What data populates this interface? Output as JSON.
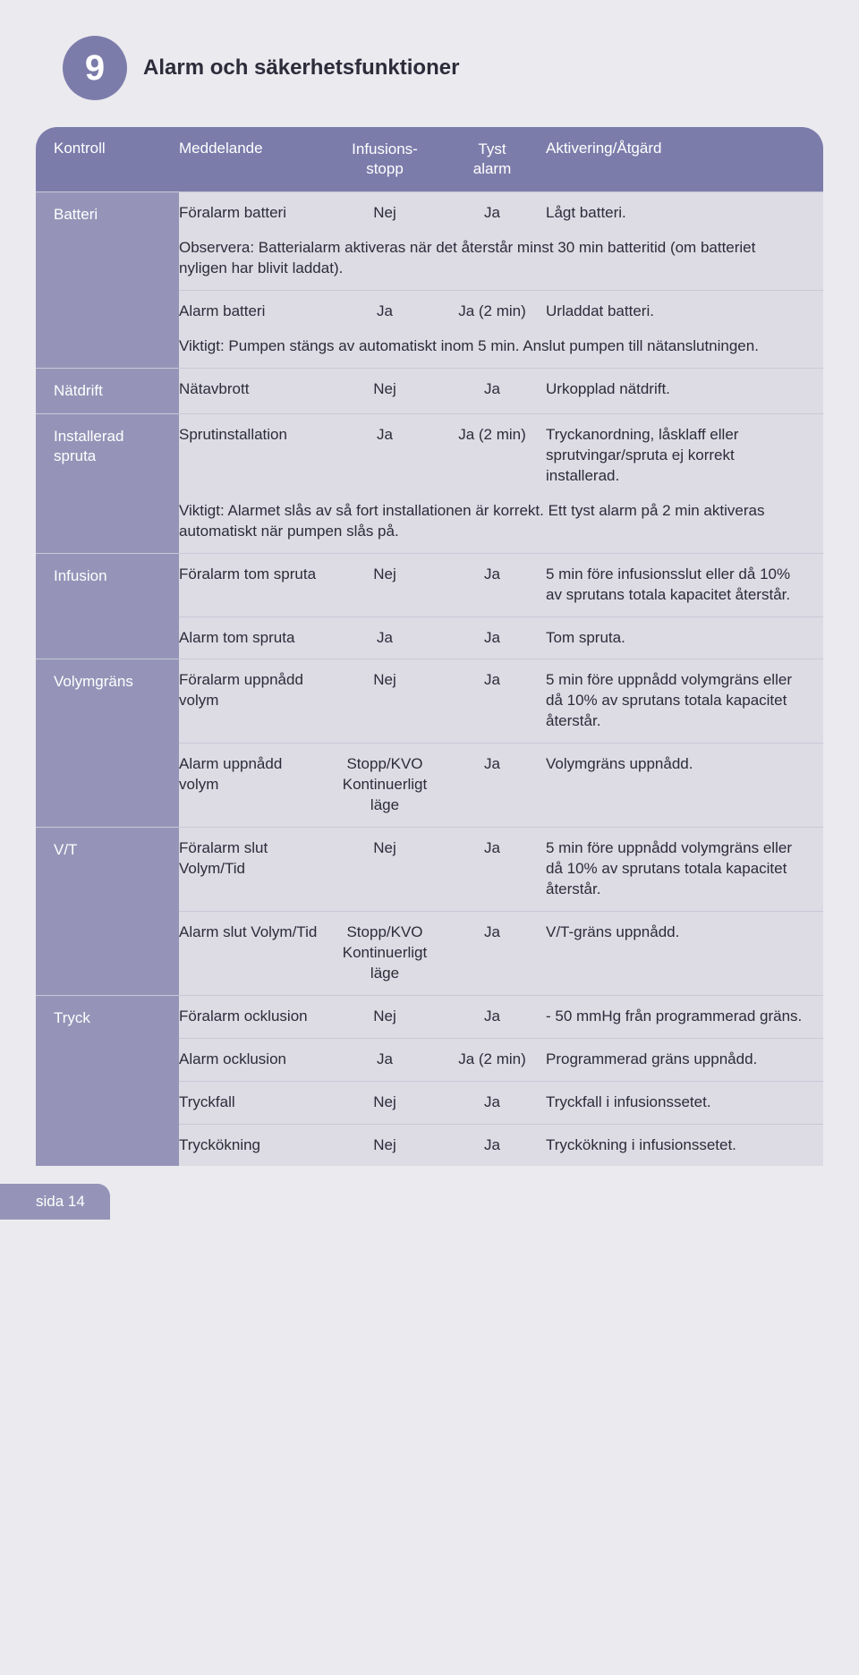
{
  "chapter": {
    "number": "9",
    "title": "Alarm och säkerhetsfunktioner"
  },
  "headers": {
    "kontroll": "Kontroll",
    "meddelande": "Meddelande",
    "stopp1": "Infusions-",
    "stopp2": "stopp",
    "tyst1": "Tyst",
    "tyst2": "alarm",
    "action": "Aktivering/Åtgärd"
  },
  "page_label": "sida 14",
  "sections": {
    "batteri": {
      "label": "Batteri",
      "rows": [
        {
          "medd": "Föralarm batteri",
          "stopp": "Nej",
          "tyst": "Ja",
          "act": "Lågt batteri.",
          "note": "Observera: Batterialarm aktiveras när det återstår minst 30 min batteritid (om batteriet nyligen har blivit laddat)."
        },
        {
          "medd": "Alarm batteri",
          "stopp": "Ja",
          "tyst": "Ja (2 min)",
          "act": "Urladdat batteri.",
          "note": "Viktigt: Pumpen stängs av automatiskt inom 5 min. Anslut pumpen till nätanslutningen."
        }
      ]
    },
    "natdrift": {
      "label": "Nätdrift",
      "rows": [
        {
          "medd": "Nätavbrott",
          "stopp": "Nej",
          "tyst": "Ja",
          "act": "Urkopplad nätdrift."
        }
      ]
    },
    "spruta": {
      "label": "Installerad spruta",
      "rows": [
        {
          "medd": "Sprutinstallation",
          "stopp": "Ja",
          "tyst": "Ja (2 min)",
          "act": "Tryckanordning, låsklaff eller sprutvingar/spruta ej korrekt installerad.",
          "note": "Viktigt: Alarmet slås av så fort installationen är korrekt. Ett tyst alarm på 2 min aktiveras automatiskt när pumpen slås på."
        }
      ]
    },
    "infusion": {
      "label": "Infusion",
      "rows": [
        {
          "medd": "Föralarm tom spruta",
          "stopp": "Nej",
          "tyst": "Ja",
          "act": "5 min före infusionsslut eller då 10% av sprutans totala kapacitet återstår."
        },
        {
          "medd": "Alarm tom spruta",
          "stopp": "Ja",
          "tyst": "Ja",
          "act": "Tom spruta."
        }
      ]
    },
    "volym": {
      "label": "Volymgräns",
      "rows": [
        {
          "medd": "Föralarm uppnådd volym",
          "stopp": "Nej",
          "tyst": "Ja",
          "act": "5 min före uppnådd volymgräns eller då 10% av sprutans totala kapacitet återstår."
        },
        {
          "medd": "Alarm uppnådd volym",
          "stopp": "Stopp/KVO Kontinuerligt läge",
          "tyst": "Ja",
          "act": "Volymgräns uppnådd."
        }
      ]
    },
    "vt": {
      "label": "V/T",
      "rows": [
        {
          "medd": "Föralarm slut Volym/Tid",
          "stopp": "Nej",
          "tyst": "Ja",
          "act": "5 min före uppnådd volymgräns eller då 10% av sprutans totala kapacitet återstår."
        },
        {
          "medd": "Alarm slut Volym/Tid",
          "stopp": "Stopp/KVO Kontinuerligt läge",
          "tyst": "Ja",
          "act": "V/T-gräns uppnådd."
        }
      ]
    },
    "tryck": {
      "label": "Tryck",
      "rows": [
        {
          "medd": "Föralarm ocklusion",
          "stopp": "Nej",
          "tyst": "Ja",
          "act": "- 50 mmHg från programmerad gräns."
        },
        {
          "medd": "Alarm ocklusion",
          "stopp": "Ja",
          "tyst": "Ja (2 min)",
          "act": "Programmerad gräns uppnådd."
        },
        {
          "medd": "Tryckfall",
          "stopp": "Nej",
          "tyst": "Ja",
          "act": "Tryckfall i infusionssetet."
        },
        {
          "medd": "Tryckökning",
          "stopp": "Nej",
          "tyst": "Ja",
          "act": "Tryckökning i infusionssetet."
        }
      ]
    }
  }
}
